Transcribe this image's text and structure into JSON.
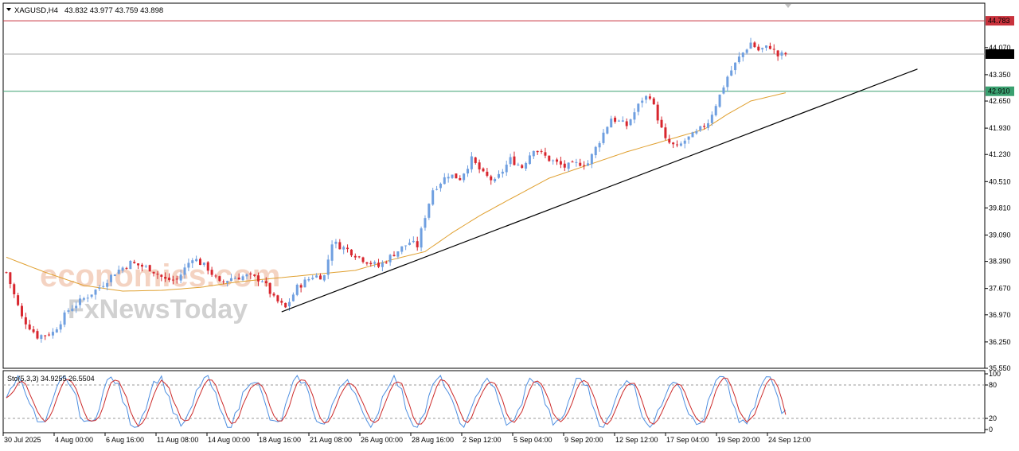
{
  "header": {
    "symbol": "XAGUSD,H4",
    "ohlc": "43.832 43.977 43.759 43.898"
  },
  "watermark": {
    "brand": "economies.com",
    "sub": "FxNewsToday"
  },
  "colors": {
    "bull": "#6f9fe0",
    "bear": "#d8262e",
    "ma": "#e0a030",
    "stoch_main": "#4f8fe0",
    "stoch_signal": "#cc2a2a",
    "resistance": "#c8323c",
    "support": "#3aa070",
    "current": "#a8a8a8",
    "trendline": "#000000"
  },
  "chart_data": {
    "type": "candlestick",
    "title": "XAGUSD,H4",
    "ylim": [
      35.55,
      45.25
    ],
    "y_ticks": [
      "44.070",
      "43.350",
      "42.650",
      "41.930",
      "41.230",
      "40.510",
      "39.810",
      "39.090",
      "38.390",
      "37.670",
      "36.970",
      "36.250",
      "35.550"
    ],
    "x_labels": [
      "30 Jul 2025",
      "4 Aug 00:00",
      "6 Aug 16:00",
      "11 Aug 08:00",
      "14 Aug 00:00",
      "18 Aug 16:00",
      "21 Aug 08:00",
      "26 Aug 00:00",
      "28 Aug 16:00",
      "2 Sep 12:00",
      "5 Sep 04:00",
      "9 Sep 20:00",
      "12 Sep 12:00",
      "17 Sep 04:00",
      "19 Sep 20:00",
      "24 Sep 12:00"
    ],
    "price_key_points": [
      [
        0,
        38.1
      ],
      [
        4,
        36.9
      ],
      [
        8,
        36.4
      ],
      [
        12,
        36.5
      ],
      [
        16,
        37.1
      ],
      [
        20,
        37.4
      ],
      [
        24,
        37.7
      ],
      [
        28,
        38.1
      ],
      [
        32,
        38.35
      ],
      [
        37,
        38.2
      ],
      [
        41,
        37.9
      ],
      [
        44,
        37.9
      ],
      [
        48,
        38.5
      ],
      [
        52,
        38.2
      ],
      [
        55,
        37.8
      ],
      [
        58,
        37.95
      ],
      [
        62,
        38.0
      ],
      [
        66,
        37.9
      ],
      [
        69,
        37.4
      ],
      [
        72,
        37.15
      ],
      [
        75,
        37.7
      ],
      [
        79,
        38.0
      ],
      [
        82,
        38.0
      ],
      [
        84,
        38.9
      ],
      [
        88,
        38.7
      ],
      [
        92,
        38.45
      ],
      [
        96,
        38.25
      ],
      [
        100,
        38.6
      ],
      [
        104,
        38.9
      ],
      [
        106,
        38.8
      ],
      [
        108,
        39.6
      ],
      [
        110,
        40.3
      ],
      [
        114,
        40.7
      ],
      [
        117,
        40.6
      ],
      [
        120,
        41.1
      ],
      [
        123,
        40.7
      ],
      [
        126,
        40.5
      ],
      [
        130,
        41.1
      ],
      [
        133,
        40.9
      ],
      [
        136,
        41.4
      ],
      [
        140,
        41.1
      ],
      [
        144,
        40.9
      ],
      [
        148,
        41.0
      ],
      [
        150,
        41.0
      ],
      [
        153,
        41.6
      ],
      [
        156,
        42.2
      ],
      [
        160,
        42.0
      ],
      [
        164,
        42.7
      ],
      [
        166,
        42.8
      ],
      [
        168,
        42.2
      ],
      [
        170,
        41.6
      ],
      [
        173,
        41.4
      ],
      [
        175,
        41.6
      ],
      [
        178,
        41.8
      ],
      [
        181,
        42.1
      ],
      [
        184,
        42.8
      ],
      [
        186,
        43.3
      ],
      [
        189,
        43.8
      ],
      [
        192,
        44.2
      ],
      [
        194,
        44.0
      ],
      [
        197,
        44.1
      ],
      [
        199,
        43.85
      ],
      [
        201,
        43.9
      ]
    ],
    "ma_series": {
      "name": "",
      "key_points": [
        [
          0,
          38.5
        ],
        [
          10,
          38.1
        ],
        [
          20,
          37.75
        ],
        [
          30,
          37.6
        ],
        [
          40,
          37.62
        ],
        [
          50,
          37.7
        ],
        [
          60,
          37.85
        ],
        [
          70,
          37.95
        ],
        [
          80,
          38.05
        ],
        [
          90,
          38.15
        ],
        [
          100,
          38.45
        ],
        [
          108,
          38.65
        ],
        [
          115,
          39.15
        ],
        [
          122,
          39.6
        ],
        [
          130,
          40.05
        ],
        [
          140,
          40.6
        ],
        [
          150,
          40.95
        ],
        [
          160,
          41.3
        ],
        [
          170,
          41.6
        ],
        [
          180,
          41.9
        ],
        [
          186,
          42.3
        ],
        [
          192,
          42.65
        ],
        [
          201,
          42.87
        ]
      ]
    },
    "levels": [
      {
        "label": "44.783",
        "value": 44.783,
        "role": "resistance"
      },
      {
        "label": "43.898",
        "value": 43.898,
        "role": "current"
      },
      {
        "label": "42.910",
        "value": 42.91,
        "role": "support"
      }
    ],
    "trendline": {
      "from": [
        71,
        37.05
      ],
      "to": [
        235,
        43.5
      ]
    },
    "stochastic": {
      "label": "Sto(5,3,3) 34.9255 26.5504",
      "k": 34.9255,
      "d": 26.5504,
      "ylim": [
        0,
        100
      ],
      "y_ticks": [
        "100",
        "80",
        "20",
        "0"
      ],
      "levels": [
        80,
        20
      ]
    }
  }
}
